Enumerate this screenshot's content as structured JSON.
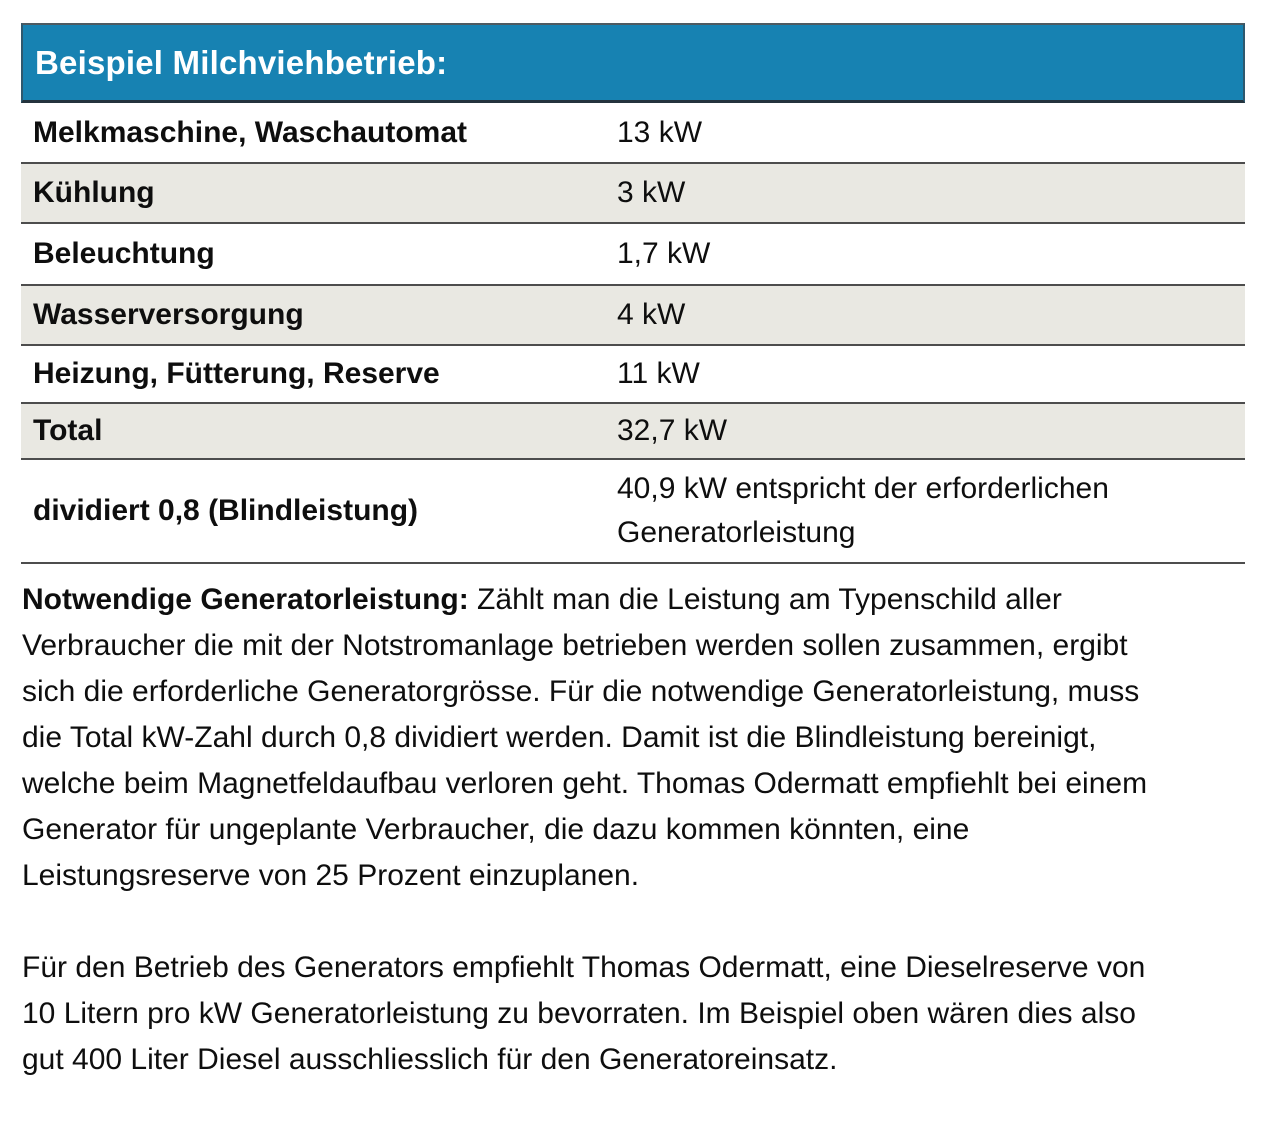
{
  "table": {
    "title": "Beispiel Milchviehbetrieb:",
    "rows": [
      {
        "label": "Melkmaschine, Waschautomat",
        "value": "13 kW"
      },
      {
        "label": "Kühlung",
        "value": "3 kW"
      },
      {
        "label": "Beleuchtung",
        "value": "1,7 kW"
      },
      {
        "label": "Wasserversorgung",
        "value": "4 kW"
      },
      {
        "label": "Heizung, Fütterung, Reserve",
        "value": "11 kW"
      },
      {
        "label": "Total",
        "value": "32,7 kW"
      },
      {
        "label": "dividiert 0,8 (Blindleistung)",
        "value_lines": [
          "40,9 kW entspricht der erforderlichen",
          "Generatorleistung"
        ]
      }
    ]
  },
  "paragraphs": [
    {
      "lead": "Notwendige Generatorleistung:",
      "lead_rest": " Zählt man die Leistung am Typenschild aller",
      "lines": [
        "Verbraucher die mit der Notstromanlage betrieben werden sollen zusammen, ergibt",
        "sich die erforderliche Generatorgrösse. Für die notwendige Generatorleistung, muss",
        "die Total kW-Zahl durch 0,8 dividiert werden. Damit ist die Blindleistung bereinigt,",
        "welche beim Magnetfeldaufbau verloren geht. Thomas Odermatt empfiehlt bei einem",
        "Generator für ungeplante Verbraucher, die dazu kommen könnten, eine",
        "Leistungsreserve von 25 Prozent einzuplanen."
      ]
    },
    {
      "lines": [
        "Für den Betrieb des Generators empfiehlt Thomas Odermatt, eine Dieselreserve von",
        "10 Litern pro kW Generatorleistung zu bevorraten. Im Beispiel oben wären dies also",
        "gut 400 Liter Diesel ausschliesslich für den Generatoreinsatz."
      ]
    }
  ],
  "colors": {
    "header_blue": "#1782B2",
    "row_gray": "#E9E8E2",
    "rule_dark": "#4d4d4d",
    "text": "#0e0e0e"
  }
}
